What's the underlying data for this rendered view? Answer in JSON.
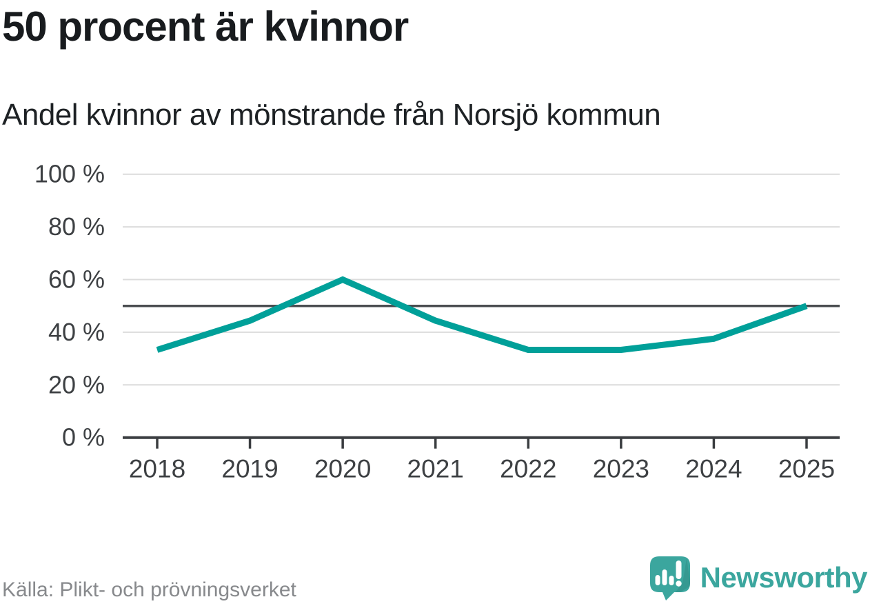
{
  "header": {
    "title": "50 procent är kvinnor",
    "subtitle": "Andel kvinnor av mönstrande från Norsjö kommun"
  },
  "chart_data": {
    "type": "line",
    "title": "50 procent är kvinnor",
    "subtitle": "Andel kvinnor av mönstrande från Norsjö kommun",
    "x": [
      "2018",
      "2019",
      "2020",
      "2021",
      "2022",
      "2023",
      "2024",
      "2025"
    ],
    "series": [
      {
        "name": "Andel kvinnor av mönstrande",
        "values": [
          33.3,
          44.4,
          60,
          44.4,
          33.3,
          33.3,
          37.5,
          50
        ]
      }
    ],
    "unit": "%",
    "ylim": [
      0,
      100
    ],
    "yticks": [
      {
        "value": 100,
        "label": "100 %"
      },
      {
        "value": 80,
        "label": "80 %"
      },
      {
        "value": 60,
        "label": "60 %"
      },
      {
        "value": 40,
        "label": "40 %"
      },
      {
        "value": 20,
        "label": "20 %"
      },
      {
        "value": 0,
        "label": "0 %"
      }
    ],
    "reference_line": {
      "value": 50
    },
    "grid": true,
    "legend": "none",
    "markers": false,
    "colors": {
      "line": "#00a099",
      "reference": "#4a4d50",
      "grid": "#dcdcdc",
      "axis": "#3a3d40",
      "tick_text": "#3d4043"
    }
  },
  "footer": {
    "source": "Källa: Plikt- och prövningsverket",
    "brand": "Newsworthy",
    "brand_color": "#3ba69e"
  }
}
